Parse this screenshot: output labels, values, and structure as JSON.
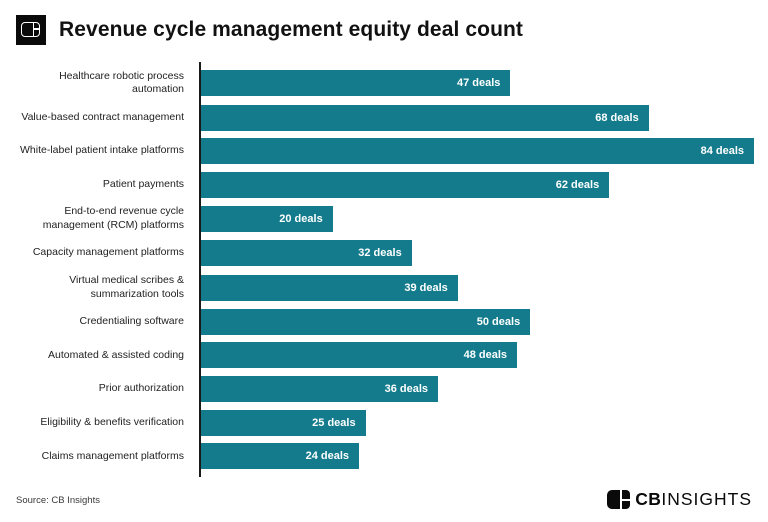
{
  "header": {
    "title": "Revenue cycle management equity deal count"
  },
  "chart_data": {
    "type": "bar",
    "orientation": "horizontal",
    "title": "Revenue cycle management equity deal count",
    "categories": [
      "Healthcare robotic process automation",
      "Value-based contract management",
      "White-label patient intake platforms",
      "Patient payments",
      "End-to-end revenue cycle management (RCM) platforms",
      "Capacity management platforms",
      "Virtual medical scribes & summarization tools",
      "Credentialing software",
      "Automated & assisted coding",
      "Prior authorization",
      "Eligibility & benefits verification",
      "Claims management platforms"
    ],
    "values": [
      47,
      68,
      84,
      62,
      20,
      32,
      39,
      50,
      48,
      36,
      25,
      24
    ],
    "value_label_suffix": " deals",
    "xlabel": "",
    "ylabel": "",
    "xlim": [
      0,
      84
    ],
    "grid": false,
    "legend": false,
    "bar_color": "#137B8C",
    "value_label_color": "#FFFFFF",
    "axis_color": "#1A1A1A"
  },
  "footer": {
    "source": "Source: CB Insights",
    "brand_bold": "CB",
    "brand_light": "INSIGHTS"
  }
}
